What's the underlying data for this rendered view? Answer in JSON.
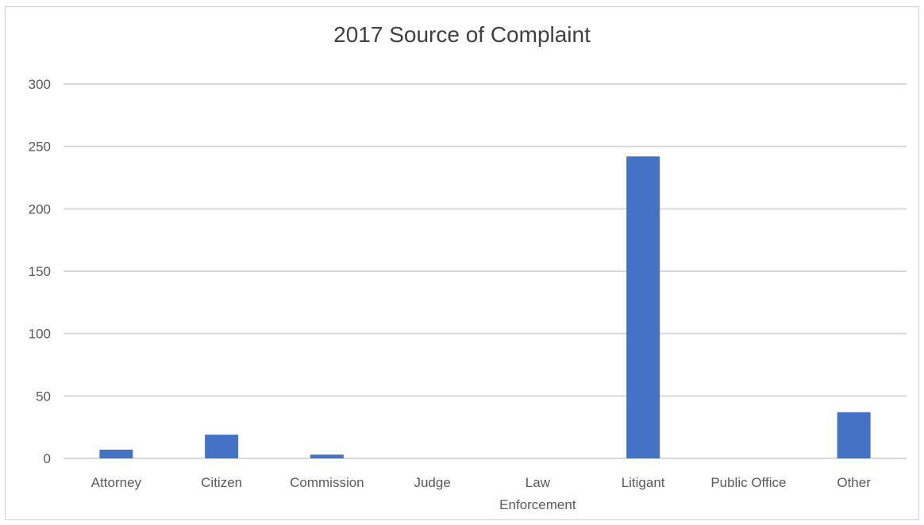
{
  "chart_data": {
    "type": "bar",
    "title": "2017 Source of Complaint",
    "categories": [
      "Attorney",
      "Citizen",
      "Commission",
      "Judge",
      "Law Enforcement",
      "Litigant",
      "Public Office",
      "Other"
    ],
    "category_label_lines": [
      [
        "Attorney"
      ],
      [
        "Citizen"
      ],
      [
        "Commission"
      ],
      [
        "Judge"
      ],
      [
        "Law",
        "Enforcement"
      ],
      [
        "Litigant"
      ],
      [
        "Public Office"
      ],
      [
        "Other"
      ]
    ],
    "values": [
      7,
      19,
      3,
      0,
      0,
      242,
      0,
      37
    ],
    "ylim": [
      0,
      300
    ],
    "yticks": [
      0,
      50,
      100,
      150,
      200,
      250,
      300
    ],
    "xlabel": "",
    "ylabel": "",
    "grid": true,
    "legend": "none",
    "bar_color": "#4472C4",
    "grid_color": "#d9d9d9"
  }
}
